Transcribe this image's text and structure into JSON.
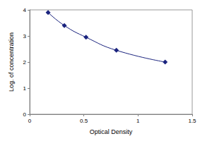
{
  "chart_data": {
    "type": "line",
    "x_label": "Optical Density",
    "y_label": "Log. of concentration",
    "x": [
      0.17,
      0.32,
      0.52,
      0.8,
      1.25
    ],
    "values": [
      3.9,
      3.4,
      2.95,
      2.45,
      2.0
    ],
    "color": "#1a237e",
    "marker": "diamond",
    "line_style": "solid",
    "xlim": [
      0,
      1.5
    ],
    "xticks": [
      0,
      0.5,
      1,
      1.5
    ],
    "ylim": [
      0,
      4
    ],
    "yticks": [
      0,
      1,
      2,
      3,
      4
    ],
    "grid": false
  }
}
